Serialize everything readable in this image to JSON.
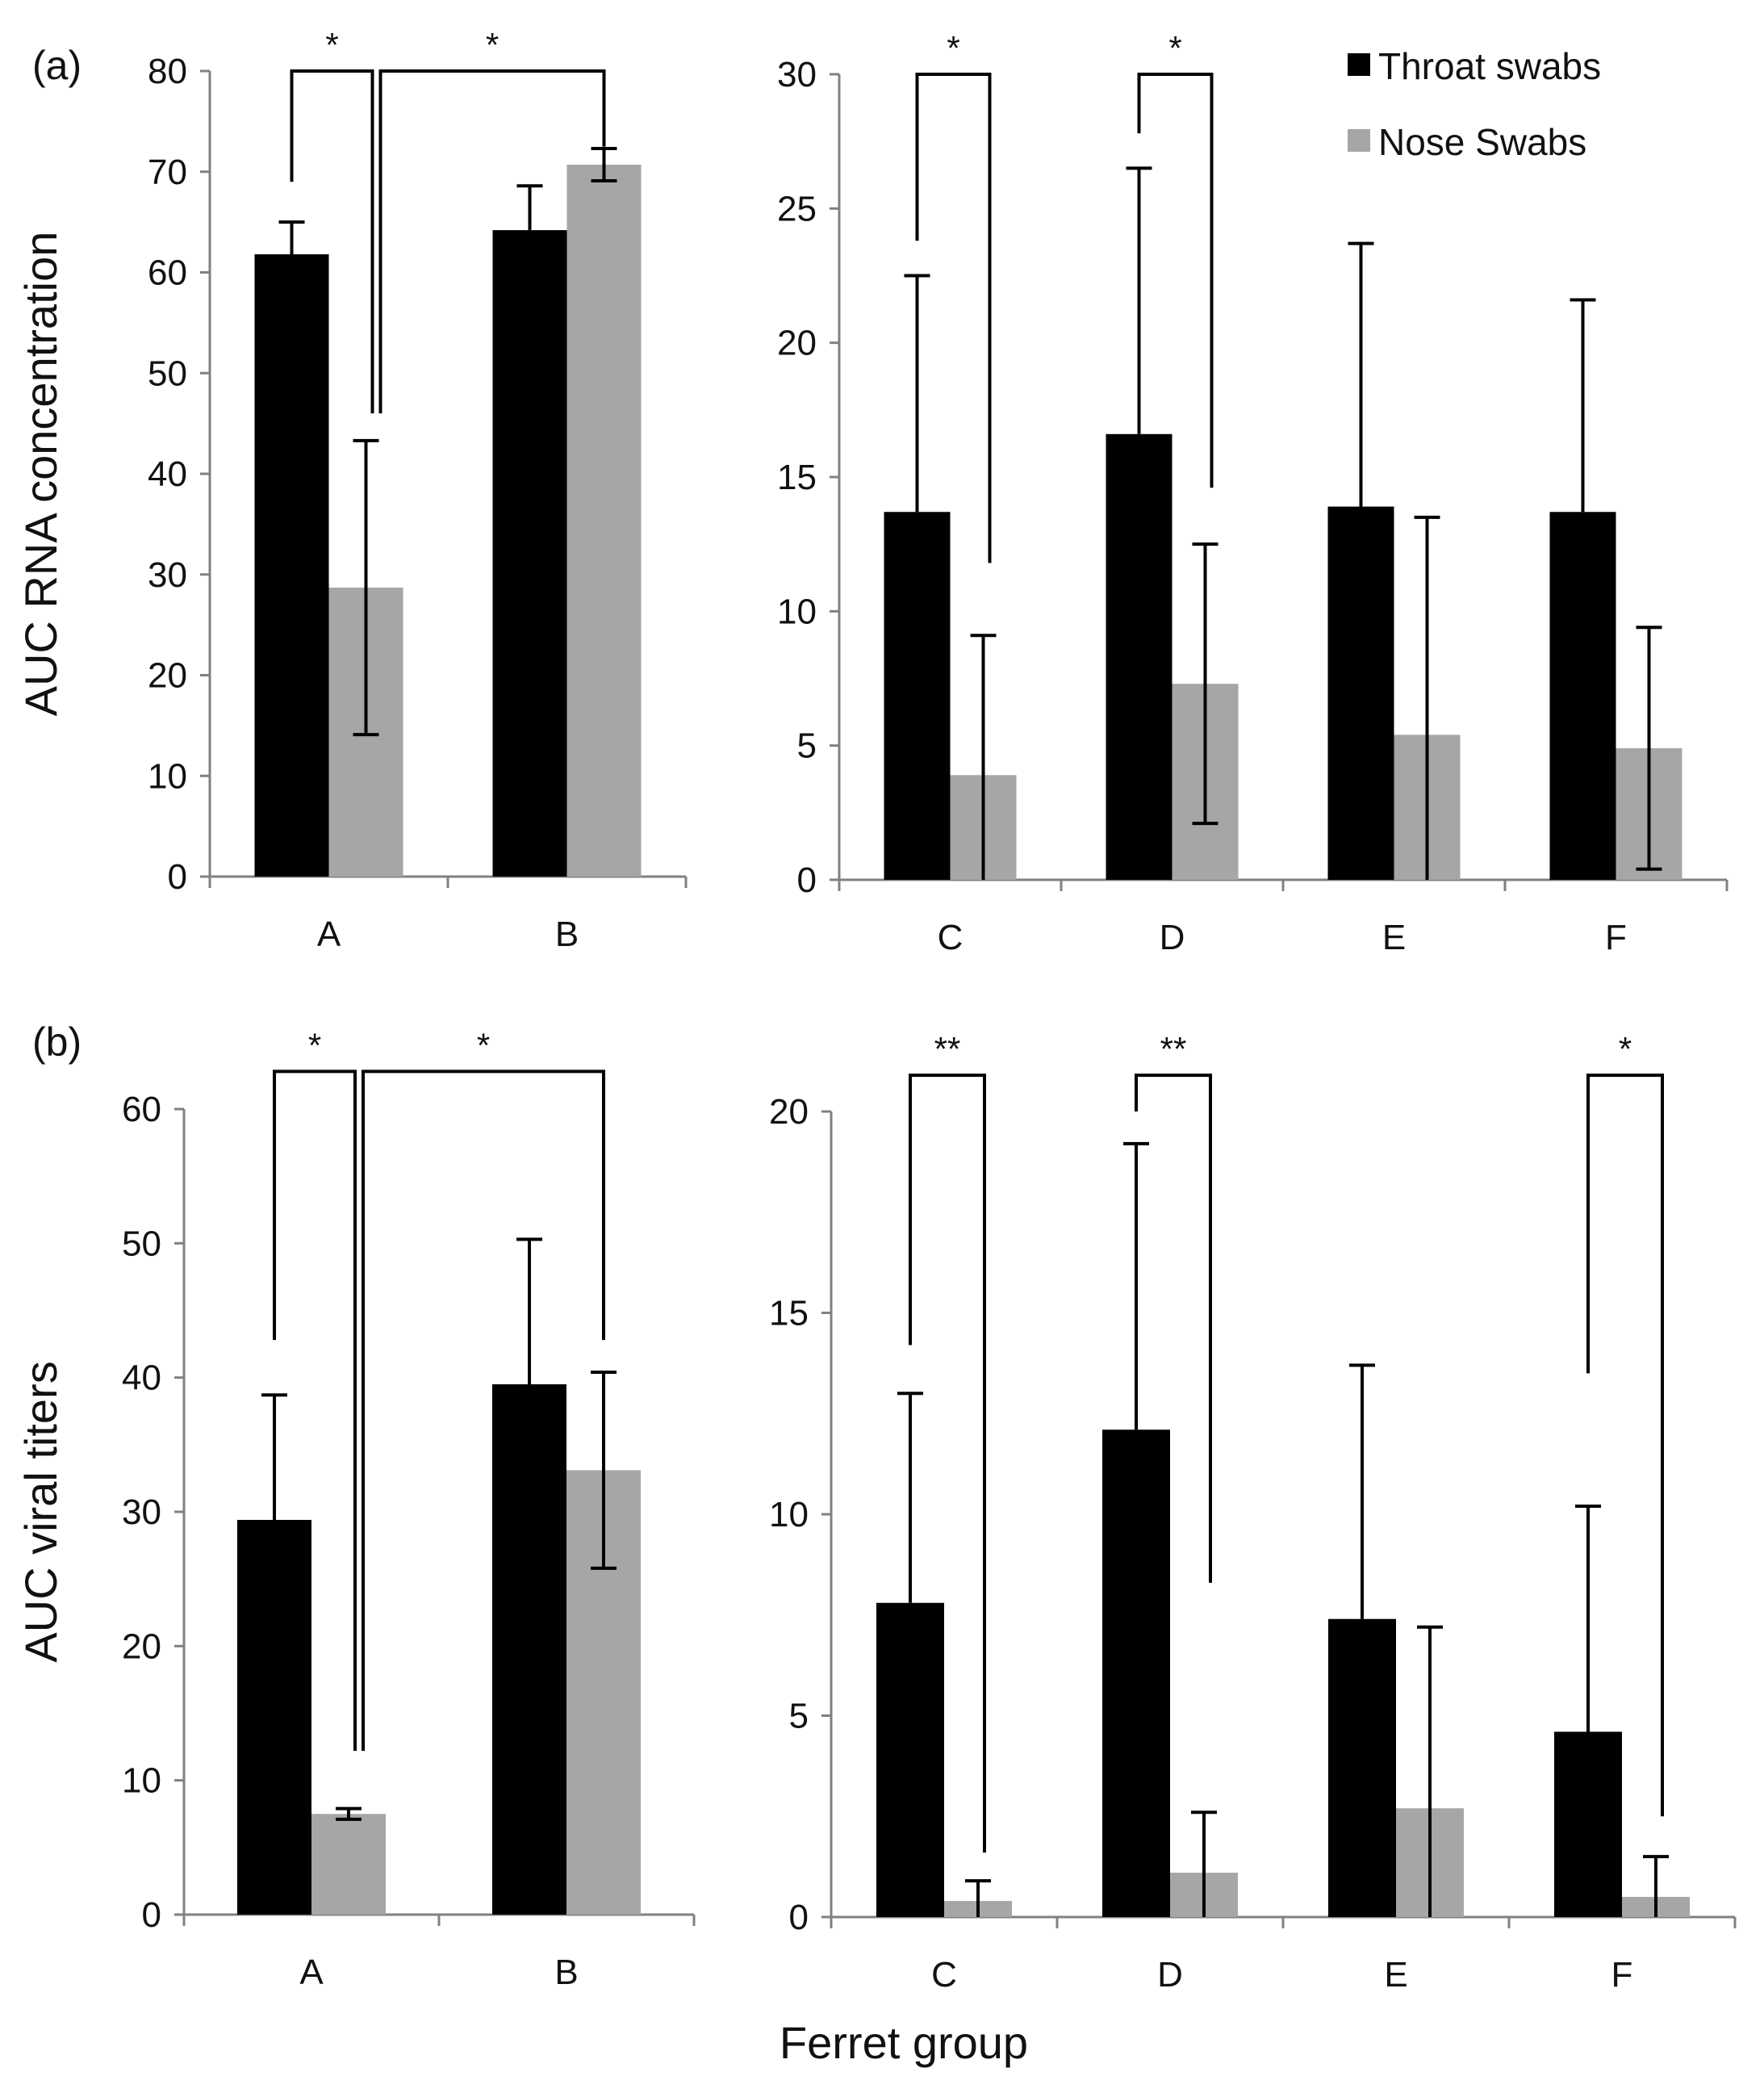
{
  "figure": {
    "xlabel": "Ferret group",
    "legend": {
      "position": "top-right",
      "items": [
        {
          "label": "Throat swabs",
          "color": "#000000"
        },
        {
          "label": "Nose Swabs",
          "color": "#a6a6a6"
        }
      ]
    }
  },
  "chart_data": [
    {
      "id": "a-left",
      "type": "bar",
      "panel_label": "(a)",
      "ylabel": "AUC RNA concentration",
      "categories": [
        "A",
        "B"
      ],
      "ylim": [
        0,
        80
      ],
      "yticks": [
        0,
        10,
        20,
        30,
        40,
        50,
        60,
        70,
        80
      ],
      "series": [
        {
          "name": "Throat swabs",
          "values": [
            61.8,
            64.2
          ],
          "errors": [
            3.2,
            4.4
          ],
          "errorDirection": [
            "up",
            "up"
          ]
        },
        {
          "name": "Nose Swabs",
          "values": [
            28.7,
            70.7
          ],
          "errors": [
            14.6,
            1.6
          ],
          "errorDirection": [
            "both",
            "both"
          ]
        }
      ],
      "significance": [
        {
          "label": "*",
          "from": [
            0,
            0
          ],
          "to": [
            0,
            1
          ],
          "fromLevel": 69,
          "toLevel": 46,
          "top": 80
        },
        {
          "label": "*",
          "from": [
            0,
            1
          ],
          "to": [
            1,
            1
          ],
          "fromLevel": 46,
          "toLevel": 72.5,
          "top": 80
        }
      ]
    },
    {
      "id": "a-right",
      "type": "bar",
      "panel_label": "",
      "ylabel": "",
      "categories": [
        "C",
        "D",
        "E",
        "F"
      ],
      "ylim": [
        0,
        30
      ],
      "yticks": [
        0,
        5,
        10,
        15,
        20,
        25,
        30
      ],
      "series": [
        {
          "name": "Throat swabs",
          "values": [
            13.7,
            16.6,
            13.9,
            13.7
          ],
          "errors": [
            8.8,
            9.9,
            9.8,
            7.9
          ],
          "errorDirection": [
            "up",
            "up",
            "up",
            "up"
          ]
        },
        {
          "name": "Nose Swabs",
          "values": [
            3.9,
            7.3,
            5.4,
            4.9
          ],
          "errors": [
            5.2,
            5.2,
            8.1,
            4.5
          ],
          "errorDirection": [
            "both",
            "both",
            "both",
            "both"
          ]
        }
      ],
      "significance": [
        {
          "label": "*",
          "from": [
            0,
            0
          ],
          "to": [
            0,
            1
          ],
          "fromLevel": 23.8,
          "toLevel": 11.8,
          "top": 30
        },
        {
          "label": "*",
          "from": [
            1,
            0
          ],
          "to": [
            1,
            1
          ],
          "fromLevel": 27.8,
          "toLevel": 14.6,
          "top": 30
        }
      ]
    },
    {
      "id": "b-left",
      "type": "bar",
      "panel_label": "(b)",
      "ylabel": "AUC viral titers",
      "categories": [
        "A",
        "B"
      ],
      "ylim": [
        0,
        60
      ],
      "yticks": [
        0,
        10,
        20,
        30,
        40,
        50,
        60
      ],
      "series": [
        {
          "name": "Throat swabs",
          "values": [
            29.4,
            39.5
          ],
          "errors": [
            9.3,
            10.8
          ],
          "errorDirection": [
            "up",
            "up"
          ]
        },
        {
          "name": "Nose Swabs",
          "values": [
            7.5,
            33.1
          ],
          "errors": [
            0.4,
            7.3
          ],
          "errorDirection": [
            "both",
            "both"
          ]
        }
      ],
      "significance": [
        {
          "label": "*",
          "from": [
            0,
            0
          ],
          "to": [
            0,
            1
          ],
          "fromLevel": 42.8,
          "toLevel": 12.2,
          "top": 62.8
        },
        {
          "label": "*",
          "from": [
            0,
            1
          ],
          "to": [
            1,
            1
          ],
          "fromLevel": 12.2,
          "toLevel": 42.8,
          "top": 62.8
        }
      ]
    },
    {
      "id": "b-right",
      "type": "bar",
      "panel_label": "",
      "ylabel": "",
      "categories": [
        "C",
        "D",
        "E",
        "F"
      ],
      "ylim": [
        0,
        20
      ],
      "yticks": [
        0,
        5,
        10,
        15,
        20
      ],
      "series": [
        {
          "name": "Throat swabs",
          "values": [
            7.8,
            12.1,
            7.4,
            4.6
          ],
          "errors": [
            5.2,
            7.1,
            6.3,
            5.6
          ],
          "errorDirection": [
            "up",
            "up",
            "up",
            "up"
          ]
        },
        {
          "name": "Nose Swabs",
          "values": [
            0.4,
            1.1,
            2.7,
            0.5
          ],
          "errors": [
            0.5,
            1.5,
            4.5,
            1.0
          ],
          "errorDirection": [
            "both",
            "both",
            "both",
            "both"
          ]
        }
      ],
      "significance": [
        {
          "label": "**",
          "from": [
            0,
            0
          ],
          "to": [
            0,
            1
          ],
          "fromLevel": 14.2,
          "toLevel": 1.6,
          "top": 20.9
        },
        {
          "label": "**",
          "from": [
            1,
            0
          ],
          "to": [
            1,
            1
          ],
          "fromLevel": 20.0,
          "toLevel": 8.3,
          "top": 20.9
        },
        {
          "label": "*",
          "from": [
            3,
            0
          ],
          "to": [
            3,
            1
          ],
          "fromLevel": 13.5,
          "toLevel": 2.5,
          "top": 20.9
        }
      ]
    }
  ]
}
